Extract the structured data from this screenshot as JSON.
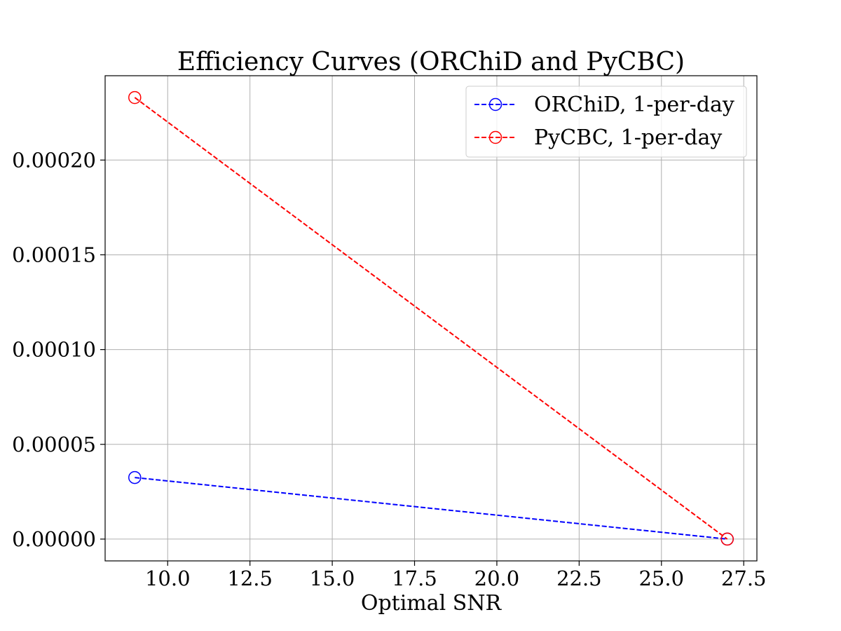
{
  "chart_data": {
    "type": "line",
    "title": "Efficiency Curves (ORChiD and PyCBC)",
    "xlabel": "Optimal SNR",
    "ylabel": "",
    "xlim": [
      8.1,
      27.9
    ],
    "ylim": [
      -1.15e-05,
      0.0002445
    ],
    "x_ticks": [
      10.0,
      12.5,
      15.0,
      17.5,
      20.0,
      22.5,
      25.0,
      27.5
    ],
    "x_tick_labels": [
      "10.0",
      "12.5",
      "15.0",
      "17.5",
      "20.0",
      "22.5",
      "25.0",
      "27.5"
    ],
    "y_ticks": [
      0.0,
      5e-05,
      0.0001,
      0.00015,
      0.0002
    ],
    "y_tick_labels": [
      "0.00000",
      "0.00005",
      "0.00010",
      "0.00015",
      "0.00020"
    ],
    "grid": true,
    "legend_position": "top-right",
    "series": [
      {
        "name": "ORChiD, 1-per-day",
        "color": "#0000ff",
        "line_style": "dashed",
        "marker": "open-circle",
        "x": [
          9.0,
          27.0
        ],
        "y": [
          3.25e-05,
          0.0
        ]
      },
      {
        "name": "PyCBC, 1-per-day",
        "color": "#ff0000",
        "line_style": "dashed",
        "marker": "open-circle",
        "x": [
          9.0,
          27.0
        ],
        "y": [
          0.000233,
          0.0
        ]
      }
    ]
  }
}
